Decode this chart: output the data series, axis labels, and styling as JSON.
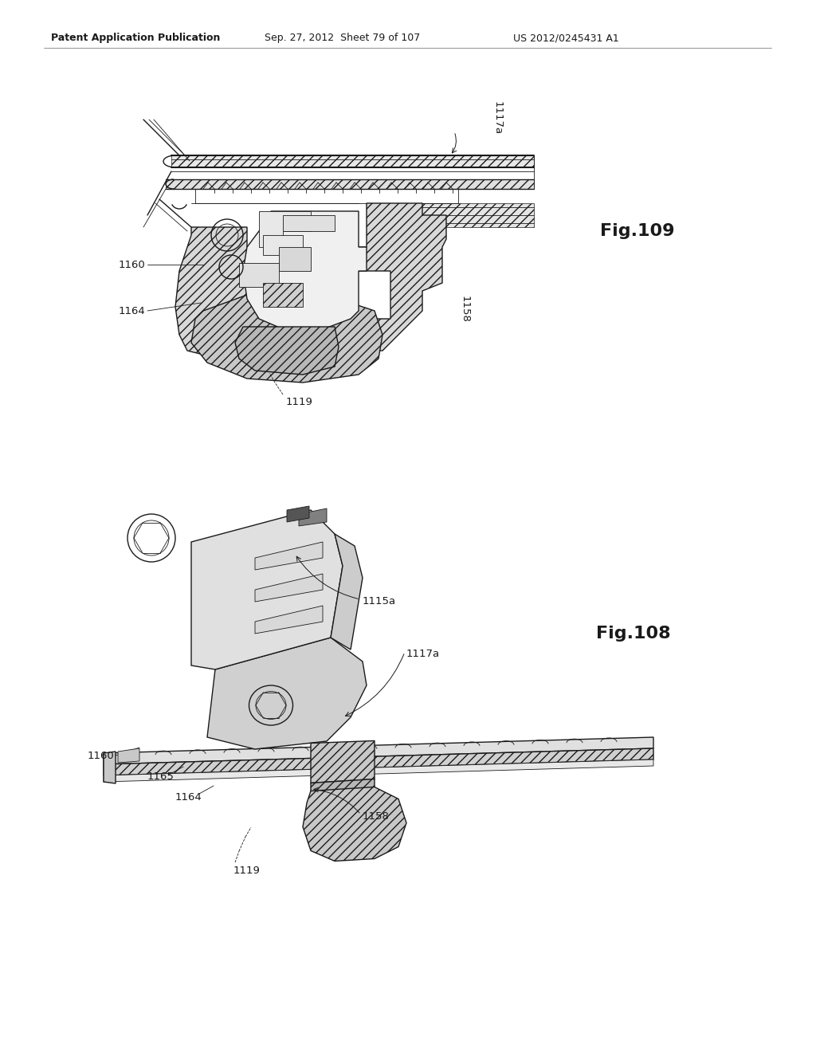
{
  "bg": "#ffffff",
  "lc": "#1a1a1a",
  "header_left": "Patent Application Publication",
  "header_mid": "Sep. 27, 2012  Sheet 79 of 107",
  "header_right": "US 2012/0245431 A1",
  "fig109": "Fig.109",
  "fig108": "Fig.108",
  "lfs": 9.5,
  "hfs": 9,
  "ffs": 16
}
